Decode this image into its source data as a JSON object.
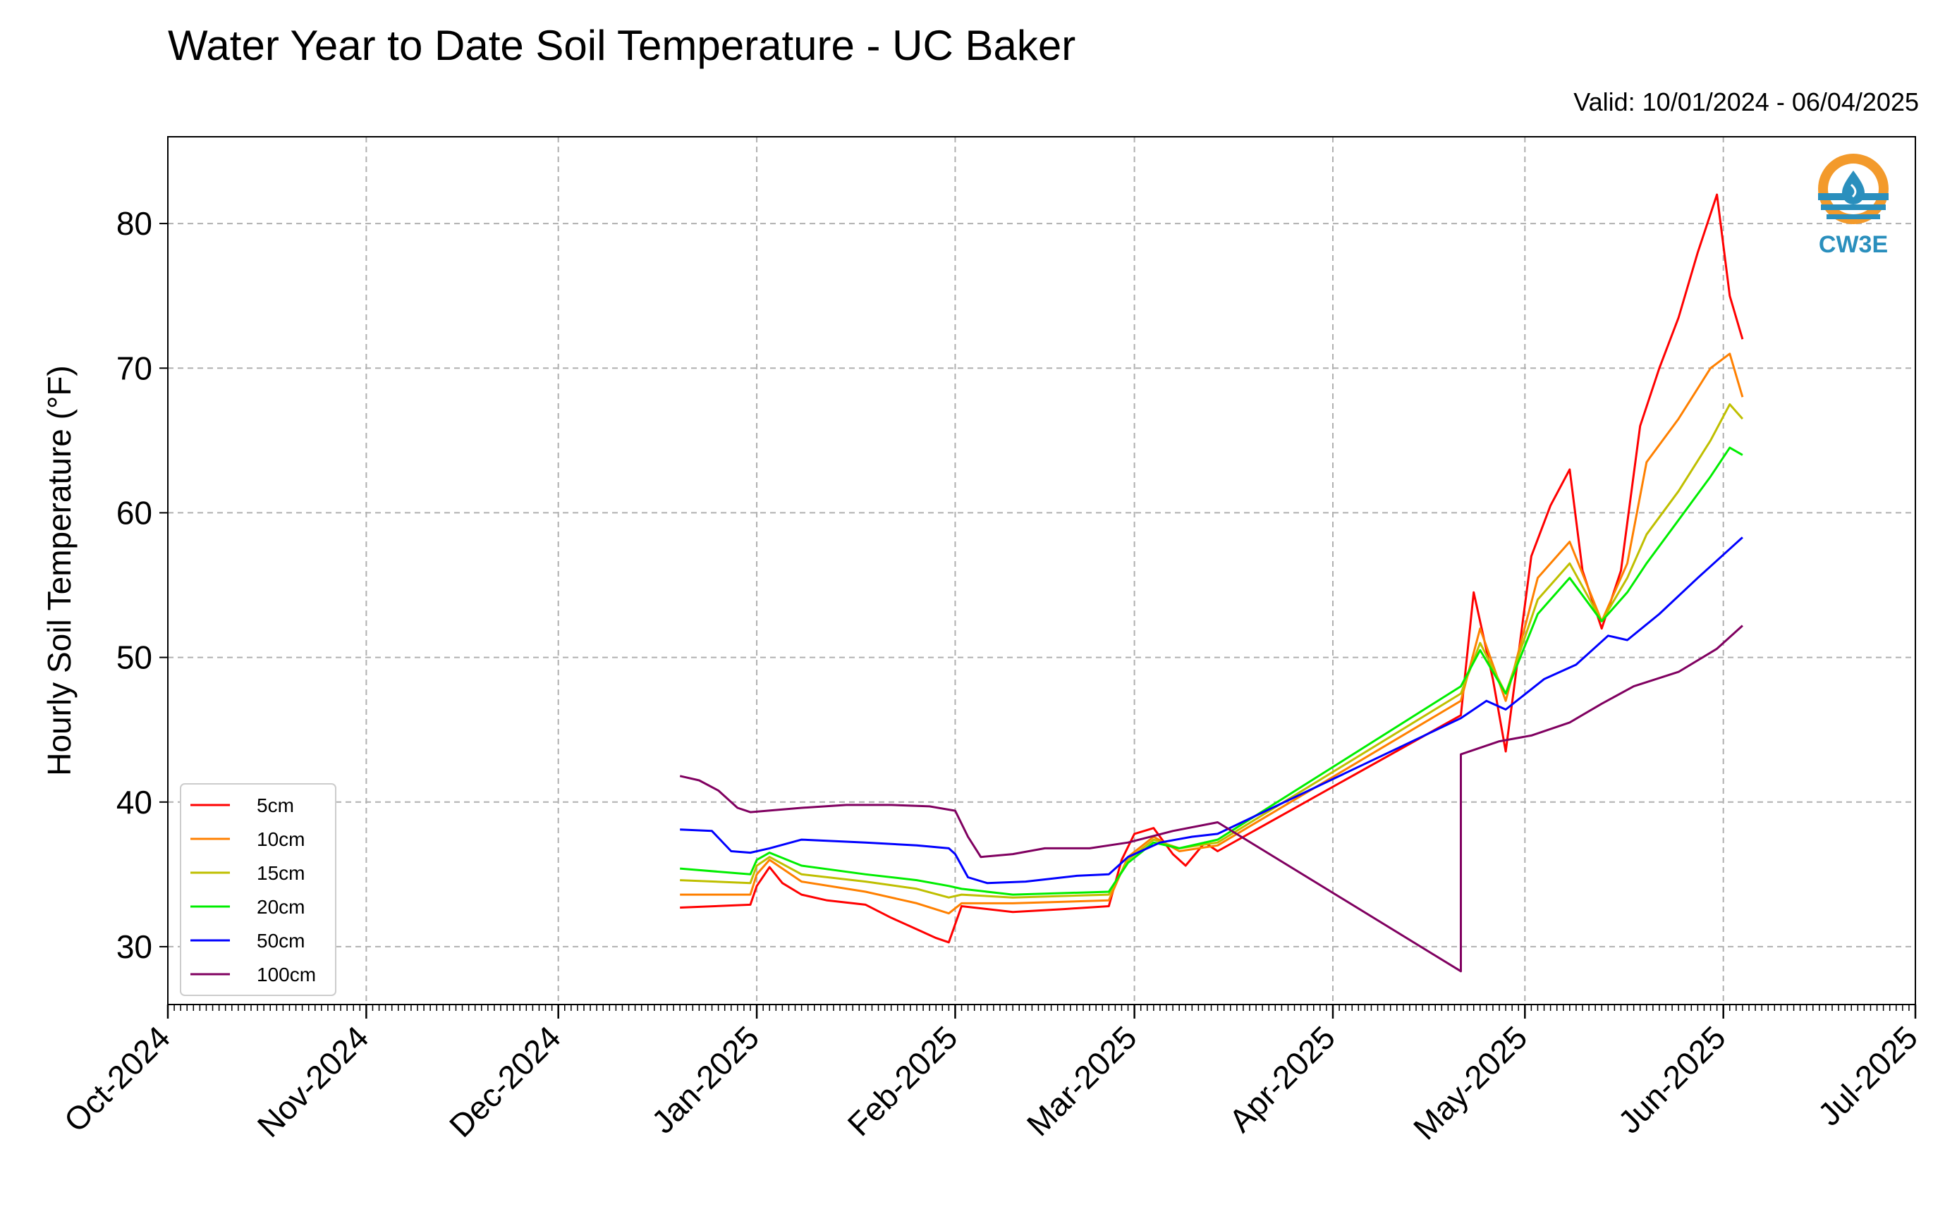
{
  "header": {
    "title": "Water Year to Date Soil Temperature - UC Baker",
    "valid": "Valid: 10/01/2024 - 06/04/2025"
  },
  "logo": {
    "text": "CW3E",
    "icon": "cw3e-water-drop-logo"
  },
  "colors": {
    "5cm": "#ff0000",
    "10cm": "#ff8000",
    "15cm": "#bfbf00",
    "20cm": "#00ee00",
    "50cm": "#0000ff",
    "100cm": "#800060"
  },
  "chart_data": {
    "type": "line",
    "title": "Water Year to Date Soil Temperature - UC Baker",
    "ylabel": "Hourly Soil Temperature (°F)",
    "xlabel": "",
    "ylim": [
      26,
      86
    ],
    "xlim": [
      "2024-10-01",
      "2025-07-01"
    ],
    "yticks": [
      30,
      40,
      50,
      60,
      70,
      80
    ],
    "xticks": [
      "Oct-2024",
      "Nov-2024",
      "Dec-2024",
      "Jan-2025",
      "Feb-2025",
      "Mar-2025",
      "Apr-2025",
      "May-2025",
      "Jun-2025",
      "Jul-2025"
    ],
    "grid": true,
    "legend_position": "lower-left",
    "series": [
      {
        "name": "5cm",
        "color": "#ff0000",
        "points": [
          [
            "2024-12-20",
            32.7
          ],
          [
            "2024-12-31",
            32.9
          ],
          [
            "2025-01-01",
            34.2
          ],
          [
            "2025-01-03",
            35.5
          ],
          [
            "2025-01-05",
            34.4
          ],
          [
            "2025-01-08",
            33.6
          ],
          [
            "2025-01-12",
            33.2
          ],
          [
            "2025-01-18",
            32.9
          ],
          [
            "2025-01-22",
            32.0
          ],
          [
            "2025-01-26",
            31.2
          ],
          [
            "2025-01-29",
            30.6
          ],
          [
            "2025-01-31",
            30.3
          ],
          [
            "2025-02-02",
            32.8
          ],
          [
            "2025-02-10",
            32.4
          ],
          [
            "2025-02-18",
            32.6
          ],
          [
            "2025-02-25",
            32.8
          ],
          [
            "2025-02-27",
            36.0
          ],
          [
            "2025-03-01",
            37.8
          ],
          [
            "2025-03-04",
            38.2
          ],
          [
            "2025-03-07",
            36.4
          ],
          [
            "2025-03-09",
            35.6
          ],
          [
            "2025-03-12",
            37.2
          ],
          [
            "2025-03-14",
            36.6
          ],
          [
            "2025-04-21",
            46.0
          ],
          [
            "2025-04-23",
            54.5
          ],
          [
            "2025-04-26",
            48.5
          ],
          [
            "2025-04-28",
            43.5
          ],
          [
            "2025-05-02",
            57.0
          ],
          [
            "2025-05-05",
            60.5
          ],
          [
            "2025-05-08",
            63.0
          ],
          [
            "2025-05-10",
            56.0
          ],
          [
            "2025-05-13",
            52.0
          ],
          [
            "2025-05-16",
            56.0
          ],
          [
            "2025-05-19",
            66.0
          ],
          [
            "2025-05-22",
            70.0
          ],
          [
            "2025-05-25",
            73.5
          ],
          [
            "2025-05-28",
            78.0
          ],
          [
            "2025-05-31",
            82.0
          ],
          [
            "2025-06-02",
            75.0
          ],
          [
            "2025-06-04",
            72.0
          ]
        ]
      },
      {
        "name": "10cm",
        "color": "#ff8000",
        "points": [
          [
            "2024-12-20",
            33.6
          ],
          [
            "2024-12-31",
            33.6
          ],
          [
            "2025-01-01",
            35.0
          ],
          [
            "2025-01-03",
            36.0
          ],
          [
            "2025-01-08",
            34.5
          ],
          [
            "2025-01-18",
            33.8
          ],
          [
            "2025-01-26",
            33.0
          ],
          [
            "2025-01-31",
            32.3
          ],
          [
            "2025-02-02",
            33.0
          ],
          [
            "2025-02-10",
            33.0
          ],
          [
            "2025-02-25",
            33.2
          ],
          [
            "2025-02-28",
            36.2
          ],
          [
            "2025-03-04",
            37.6
          ],
          [
            "2025-03-08",
            36.6
          ],
          [
            "2025-03-14",
            37.0
          ],
          [
            "2025-04-21",
            47.0
          ],
          [
            "2025-04-24",
            52.0
          ],
          [
            "2025-04-28",
            47.0
          ],
          [
            "2025-05-03",
            55.5
          ],
          [
            "2025-05-08",
            58.0
          ],
          [
            "2025-05-13",
            52.5
          ],
          [
            "2025-05-17",
            56.5
          ],
          [
            "2025-05-20",
            63.5
          ],
          [
            "2025-05-25",
            66.5
          ],
          [
            "2025-05-30",
            70.0
          ],
          [
            "2025-06-02",
            71.0
          ],
          [
            "2025-06-04",
            68.0
          ]
        ]
      },
      {
        "name": "15cm",
        "color": "#bfbf00",
        "points": [
          [
            "2024-12-20",
            34.6
          ],
          [
            "2024-12-31",
            34.4
          ],
          [
            "2025-01-01",
            35.6
          ],
          [
            "2025-01-03",
            36.2
          ],
          [
            "2025-01-08",
            35.0
          ],
          [
            "2025-01-18",
            34.5
          ],
          [
            "2025-01-26",
            34.0
          ],
          [
            "2025-01-31",
            33.4
          ],
          [
            "2025-02-02",
            33.6
          ],
          [
            "2025-02-10",
            33.4
          ],
          [
            "2025-02-25",
            33.6
          ],
          [
            "2025-02-28",
            36.0
          ],
          [
            "2025-03-04",
            37.4
          ],
          [
            "2025-03-08",
            36.8
          ],
          [
            "2025-03-14",
            37.2
          ],
          [
            "2025-04-21",
            47.5
          ],
          [
            "2025-04-24",
            51.0
          ],
          [
            "2025-04-28",
            47.5
          ],
          [
            "2025-05-03",
            54.0
          ],
          [
            "2025-05-08",
            56.5
          ],
          [
            "2025-05-13",
            52.5
          ],
          [
            "2025-05-17",
            55.5
          ],
          [
            "2025-05-20",
            58.5
          ],
          [
            "2025-05-25",
            61.5
          ],
          [
            "2025-05-30",
            65.0
          ],
          [
            "2025-06-02",
            67.5
          ],
          [
            "2025-06-04",
            66.5
          ]
        ]
      },
      {
        "name": "20cm",
        "color": "#00ee00",
        "points": [
          [
            "2024-12-20",
            35.4
          ],
          [
            "2024-12-31",
            35.0
          ],
          [
            "2025-01-01",
            36.0
          ],
          [
            "2025-01-03",
            36.5
          ],
          [
            "2025-01-08",
            35.6
          ],
          [
            "2025-01-18",
            35.0
          ],
          [
            "2025-01-26",
            34.6
          ],
          [
            "2025-01-31",
            34.2
          ],
          [
            "2025-02-02",
            34.0
          ],
          [
            "2025-02-10",
            33.6
          ],
          [
            "2025-02-25",
            33.8
          ],
          [
            "2025-02-28",
            35.8
          ],
          [
            "2025-03-04",
            37.2
          ],
          [
            "2025-03-08",
            36.8
          ],
          [
            "2025-03-14",
            37.4
          ],
          [
            "2025-04-21",
            48.0
          ],
          [
            "2025-04-24",
            50.5
          ],
          [
            "2025-04-28",
            47.5
          ],
          [
            "2025-05-03",
            53.0
          ],
          [
            "2025-05-08",
            55.5
          ],
          [
            "2025-05-13",
            52.5
          ],
          [
            "2025-05-17",
            54.5
          ],
          [
            "2025-05-20",
            56.5
          ],
          [
            "2025-05-25",
            59.5
          ],
          [
            "2025-05-30",
            62.5
          ],
          [
            "2025-06-02",
            64.5
          ],
          [
            "2025-06-04",
            64.0
          ]
        ]
      },
      {
        "name": "50cm",
        "color": "#0000ff",
        "points": [
          [
            "2024-12-20",
            38.1
          ],
          [
            "2024-12-25",
            38.0
          ],
          [
            "2024-12-28",
            36.6
          ],
          [
            "2024-12-31",
            36.5
          ],
          [
            "2025-01-03",
            36.8
          ],
          [
            "2025-01-08",
            37.4
          ],
          [
            "2025-01-18",
            37.2
          ],
          [
            "2025-01-26",
            37.0
          ],
          [
            "2025-01-31",
            36.8
          ],
          [
            "2025-02-01",
            36.4
          ],
          [
            "2025-02-03",
            34.8
          ],
          [
            "2025-02-06",
            34.4
          ],
          [
            "2025-02-12",
            34.5
          ],
          [
            "2025-02-20",
            34.9
          ],
          [
            "2025-02-25",
            35.0
          ],
          [
            "2025-02-28",
            36.2
          ],
          [
            "2025-03-05",
            37.2
          ],
          [
            "2025-03-10",
            37.6
          ],
          [
            "2025-03-14",
            37.8
          ],
          [
            "2025-04-21",
            45.8
          ],
          [
            "2025-04-25",
            47.0
          ],
          [
            "2025-04-28",
            46.4
          ],
          [
            "2025-05-04",
            48.5
          ],
          [
            "2025-05-09",
            49.5
          ],
          [
            "2025-05-14",
            51.5
          ],
          [
            "2025-05-17",
            51.2
          ],
          [
            "2025-05-22",
            53.0
          ],
          [
            "2025-05-28",
            55.5
          ],
          [
            "2025-06-02",
            57.5
          ],
          [
            "2025-06-04",
            58.3
          ]
        ]
      },
      {
        "name": "100cm",
        "color": "#800060",
        "points": [
          [
            "2024-12-20",
            41.8
          ],
          [
            "2024-12-23",
            41.5
          ],
          [
            "2024-12-26",
            40.8
          ],
          [
            "2024-12-29",
            39.6
          ],
          [
            "2024-12-31",
            39.3
          ],
          [
            "2025-01-08",
            39.6
          ],
          [
            "2025-01-15",
            39.8
          ],
          [
            "2025-01-22",
            39.8
          ],
          [
            "2025-01-28",
            39.7
          ],
          [
            "2025-02-01",
            39.4
          ],
          [
            "2025-02-03",
            37.6
          ],
          [
            "2025-02-05",
            36.2
          ],
          [
            "2025-02-10",
            36.4
          ],
          [
            "2025-02-15",
            36.8
          ],
          [
            "2025-02-22",
            36.8
          ],
          [
            "2025-02-28",
            37.2
          ],
          [
            "2025-03-07",
            38.0
          ],
          [
            "2025-03-14",
            38.6
          ],
          [
            "2025-04-21",
            28.3
          ],
          [
            "2025-04-21",
            43.3
          ],
          [
            "2025-04-27",
            44.2
          ],
          [
            "2025-05-02",
            44.6
          ],
          [
            "2025-05-08",
            45.5
          ],
          [
            "2025-05-13",
            46.8
          ],
          [
            "2025-05-18",
            48.0
          ],
          [
            "2025-05-25",
            49.0
          ],
          [
            "2025-05-31",
            50.6
          ],
          [
            "2025-06-04",
            52.2
          ]
        ]
      }
    ]
  }
}
